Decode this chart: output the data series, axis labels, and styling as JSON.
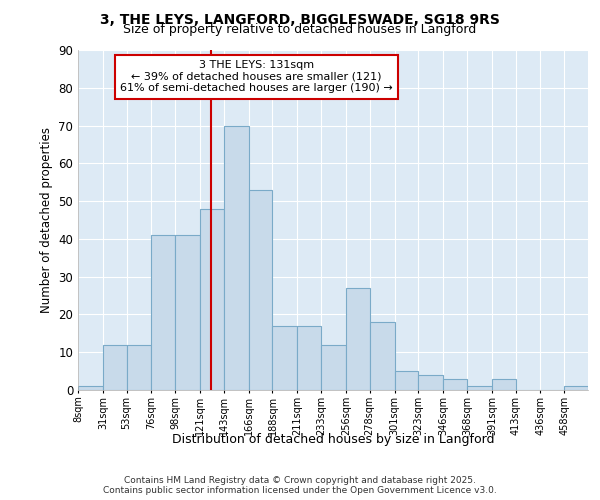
{
  "title1": "3, THE LEYS, LANGFORD, BIGGLESWADE, SG18 9RS",
  "title2": "Size of property relative to detached houses in Langford",
  "xlabel": "Distribution of detached houses by size in Langford",
  "ylabel": "Number of detached properties",
  "bin_edges": [
    8,
    31,
    53,
    76,
    98,
    121,
    143,
    166,
    188,
    211,
    233,
    256,
    278,
    301,
    323,
    346,
    368,
    391,
    413,
    436,
    458
  ],
  "bar_heights": [
    1,
    12,
    12,
    41,
    41,
    48,
    70,
    53,
    17,
    17,
    12,
    27,
    18,
    5,
    4,
    3,
    1,
    3,
    0,
    0,
    1
  ],
  "bar_color": "#c8daea",
  "bar_edge_color": "#7aaac8",
  "property_size": 131,
  "annotation_title": "3 THE LEYS: 131sqm",
  "annotation_line1": "← 39% of detached houses are smaller (121)",
  "annotation_line2": "61% of semi-detached houses are larger (190) →",
  "red_line_color": "#cc0000",
  "annotation_box_color": "#ffffff",
  "annotation_box_edge": "#cc0000",
  "ylim": [
    0,
    90
  ],
  "yticks": [
    0,
    10,
    20,
    30,
    40,
    50,
    60,
    70,
    80,
    90
  ],
  "tick_labels": [
    "8sqm",
    "31sqm",
    "53sqm",
    "76sqm",
    "98sqm",
    "121sqm",
    "143sqm",
    "166sqm",
    "188sqm",
    "211sqm",
    "233sqm",
    "256sqm",
    "278sqm",
    "301sqm",
    "323sqm",
    "346sqm",
    "368sqm",
    "391sqm",
    "413sqm",
    "436sqm",
    "458sqm"
  ],
  "footer1": "Contains HM Land Registry data © Crown copyright and database right 2025.",
  "footer2": "Contains public sector information licensed under the Open Government Licence v3.0.",
  "bg_color": "#ffffff",
  "plot_bg_color": "#ddeaf5",
  "grid_color": "#b8cfe0"
}
